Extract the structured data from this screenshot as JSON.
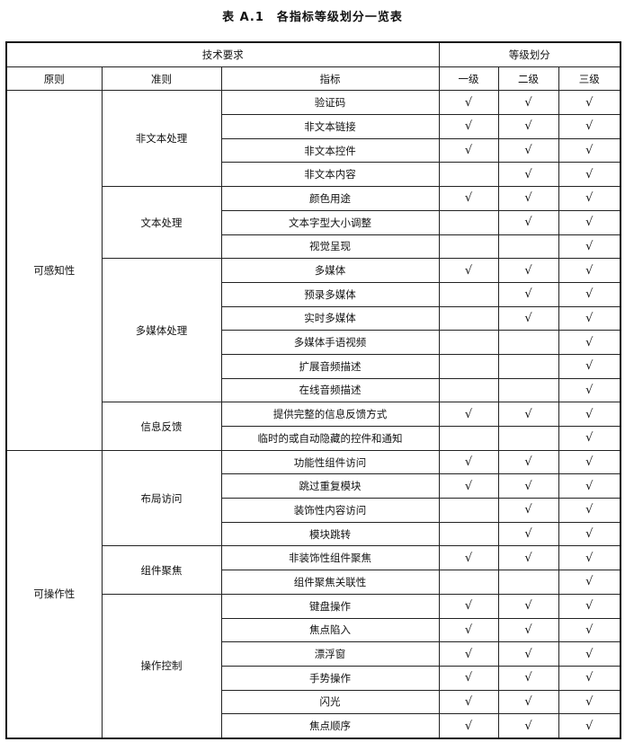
{
  "title": "表 A.1　各指标等级划分一览表",
  "header": {
    "tech_req": "技术要求",
    "levels": "等级划分",
    "principle": "原则",
    "guideline": "准则",
    "indicator": "指标",
    "level1": "一级",
    "level2": "二级",
    "level3": "三级"
  },
  "check_mark": "√",
  "principles": [
    {
      "name": "可感知性",
      "guidelines": [
        {
          "name": "非文本处理",
          "indicators": [
            {
              "name": "验证码",
              "levels": [
                true,
                true,
                true
              ]
            },
            {
              "name": "非文本链接",
              "levels": [
                true,
                true,
                true
              ]
            },
            {
              "name": "非文本控件",
              "levels": [
                true,
                true,
                true
              ]
            },
            {
              "name": "非文本内容",
              "levels": [
                false,
                true,
                true
              ]
            }
          ]
        },
        {
          "name": "文本处理",
          "indicators": [
            {
              "name": "颜色用途",
              "levels": [
                true,
                true,
                true
              ]
            },
            {
              "name": "文本字型大小调整",
              "levels": [
                false,
                true,
                true
              ]
            },
            {
              "name": "视觉呈现",
              "levels": [
                false,
                false,
                true
              ]
            }
          ]
        },
        {
          "name": "多媒体处理",
          "indicators": [
            {
              "name": "多媒体",
              "levels": [
                true,
                true,
                true
              ]
            },
            {
              "name": "预录多媒体",
              "levels": [
                false,
                true,
                true
              ]
            },
            {
              "name": "实时多媒体",
              "levels": [
                false,
                true,
                true
              ]
            },
            {
              "name": "多媒体手语视频",
              "levels": [
                false,
                false,
                true
              ]
            },
            {
              "name": "扩展音频描述",
              "levels": [
                false,
                false,
                true
              ]
            },
            {
              "name": "在线音频描述",
              "levels": [
                false,
                false,
                true
              ]
            }
          ]
        },
        {
          "name": "信息反馈",
          "indicators": [
            {
              "name": "提供完整的信息反馈方式",
              "levels": [
                true,
                true,
                true
              ]
            },
            {
              "name": "临时的或自动隐藏的控件和通知",
              "levels": [
                false,
                false,
                true
              ]
            }
          ]
        }
      ]
    },
    {
      "name": "可操作性",
      "guidelines": [
        {
          "name": "布局访问",
          "indicators": [
            {
              "name": "功能性组件访问",
              "levels": [
                true,
                true,
                true
              ]
            },
            {
              "name": "跳过重复模块",
              "levels": [
                true,
                true,
                true
              ]
            },
            {
              "name": "装饰性内容访问",
              "levels": [
                false,
                true,
                true
              ]
            },
            {
              "name": "模块跳转",
              "levels": [
                false,
                true,
                true
              ]
            }
          ]
        },
        {
          "name": "组件聚焦",
          "indicators": [
            {
              "name": "非装饰性组件聚焦",
              "levels": [
                true,
                true,
                true
              ]
            },
            {
              "name": "组件聚焦关联性",
              "levels": [
                false,
                false,
                true
              ]
            }
          ]
        },
        {
          "name": "操作控制",
          "indicators": [
            {
              "name": "键盘操作",
              "levels": [
                true,
                true,
                true
              ]
            },
            {
              "name": "焦点陷入",
              "levels": [
                true,
                true,
                true
              ]
            },
            {
              "name": "漂浮窗",
              "levels": [
                true,
                true,
                true
              ]
            },
            {
              "name": "手势操作",
              "levels": [
                true,
                true,
                true
              ]
            },
            {
              "name": "闪光",
              "levels": [
                true,
                true,
                true
              ]
            },
            {
              "name": "焦点顺序",
              "levels": [
                true,
                true,
                true
              ]
            }
          ]
        }
      ]
    }
  ]
}
